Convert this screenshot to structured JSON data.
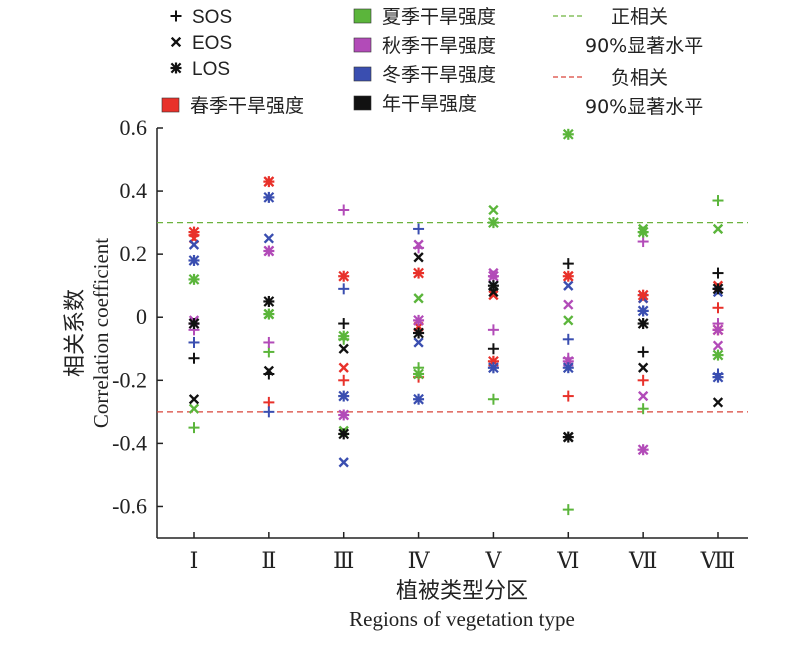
{
  "chart_data": {
    "type": "scatter",
    "xlabel_cn": "植被类型分区",
    "xlabel_en": "Regions of vegetation type",
    "ylabel_cn": "相关系数",
    "ylabel_en": "Correlation coefficient",
    "ylim": [
      -0.7,
      0.6
    ],
    "yticks": [
      "0.6",
      "0.4",
      "0.2",
      "0",
      "-0.2",
      "-0.4",
      "-0.6"
    ],
    "ytick_values": [
      0.6,
      0.4,
      0.2,
      0,
      -0.2,
      -0.4,
      -0.6
    ],
    "categories": [
      "Ⅰ",
      "Ⅱ",
      "Ⅲ",
      "Ⅳ",
      "Ⅴ",
      "Ⅵ",
      "Ⅶ",
      "Ⅷ"
    ],
    "reference_lines": [
      {
        "value": 0.3,
        "color": "#6db33f",
        "label_line1": "正相关",
        "label_line2": "90%显著水平"
      },
      {
        "value": -0.3,
        "color": "#d9443a",
        "label_line1": "负相关",
        "label_line2": "90%显著水平"
      }
    ],
    "colors": {
      "spring": "#e8312a",
      "summer": "#5bb53b",
      "autumn": "#b24bb8",
      "winter": "#3a4eb0",
      "annual": "#111111"
    },
    "drought_legend": [
      {
        "key": "spring",
        "label": "春季干旱强度"
      },
      {
        "key": "summer",
        "label": "夏季干旱强度"
      },
      {
        "key": "autumn",
        "label": "秋季干旱强度"
      },
      {
        "key": "winter",
        "label": "冬季干旱强度"
      },
      {
        "key": "annual",
        "label": "年干旱强度"
      }
    ],
    "marker_legend": [
      {
        "marker": "plus",
        "label": "SOS"
      },
      {
        "marker": "x",
        "label": "EOS"
      },
      {
        "marker": "star",
        "label": "LOS"
      }
    ],
    "series": [
      {
        "marker": "plus",
        "season": "spring",
        "values": [
          0.26,
          -0.27,
          -0.2,
          -0.19,
          -0.14,
          -0.25,
          -0.2,
          0.03
        ]
      },
      {
        "marker": "plus",
        "season": "summer",
        "values": [
          -0.35,
          -0.11,
          -0.07,
          -0.16,
          -0.26,
          -0.61,
          -0.29,
          0.37
        ]
      },
      {
        "marker": "plus",
        "season": "autumn",
        "values": [
          -0.04,
          -0.08,
          0.34,
          0.22,
          -0.04,
          -0.13,
          0.24,
          -0.02
        ]
      },
      {
        "marker": "plus",
        "season": "winter",
        "values": [
          -0.08,
          -0.3,
          0.09,
          0.28,
          -0.16,
          -0.07,
          0.02,
          -0.18
        ]
      },
      {
        "marker": "plus",
        "season": "annual",
        "values": [
          -0.13,
          -0.18,
          -0.02,
          -0.05,
          -0.1,
          0.17,
          -0.11,
          0.14
        ]
      },
      {
        "marker": "x",
        "season": "spring",
        "values": [
          0.25,
          0.43,
          -0.16,
          -0.03,
          0.07,
          0.13,
          0.06,
          0.1
        ]
      },
      {
        "marker": "x",
        "season": "summer",
        "values": [
          -0.29,
          0.01,
          -0.36,
          0.06,
          0.34,
          -0.01,
          0.28,
          0.28
        ]
      },
      {
        "marker": "x",
        "season": "autumn",
        "values": [
          -0.01,
          0.21,
          -0.31,
          0.23,
          0.14,
          0.04,
          -0.25,
          -0.09
        ]
      },
      {
        "marker": "x",
        "season": "winter",
        "values": [
          0.23,
          0.25,
          -0.46,
          -0.08,
          0.1,
          0.1,
          0.06,
          0.08
        ]
      },
      {
        "marker": "x",
        "season": "annual",
        "values": [
          -0.26,
          -0.17,
          -0.1,
          0.19,
          0.08,
          -0.38,
          -0.16,
          -0.27
        ]
      },
      {
        "marker": "star",
        "season": "spring",
        "values": [
          0.27,
          0.43,
          0.13,
          0.14,
          -0.14,
          0.13,
          0.07,
          -0.04
        ]
      },
      {
        "marker": "star",
        "season": "summer",
        "values": [
          0.12,
          0.01,
          -0.06,
          -0.18,
          0.3,
          0.58,
          0.27,
          -0.12
        ]
      },
      {
        "marker": "star",
        "season": "autumn",
        "values": [
          -0.02,
          0.21,
          -0.31,
          -0.01,
          0.13,
          -0.14,
          -0.42,
          -0.04
        ]
      },
      {
        "marker": "star",
        "season": "winter",
        "values": [
          0.18,
          0.38,
          -0.25,
          -0.26,
          -0.16,
          -0.16,
          0.02,
          -0.19
        ]
      },
      {
        "marker": "star",
        "season": "annual",
        "values": [
          -0.02,
          0.05,
          -0.37,
          -0.05,
          0.1,
          -0.38,
          -0.02,
          0.09
        ]
      }
    ]
  }
}
